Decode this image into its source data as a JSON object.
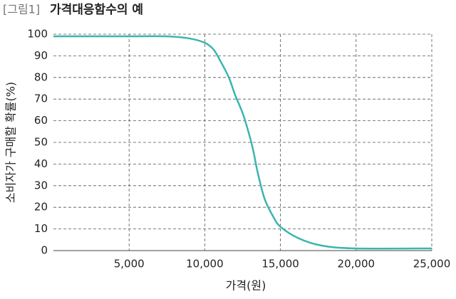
{
  "chart_data": {
    "type": "line",
    "figure_label": "[그림1]",
    "title": "가격대응함수의 예",
    "xlabel": "가격(원)",
    "ylabel": "소비자가 구매할 확률(%)",
    "x": [
      0,
      5000,
      7500,
      9000,
      10000,
      10570,
      11000,
      11590,
      12000,
      12530,
      13000,
      13240,
      13500,
      13950,
      14500,
      15000,
      16230,
      17740,
      20000,
      25000
    ],
    "series": [
      {
        "color": "#3bb5ae",
        "values": [
          99,
          99,
          99,
          98,
          96,
          93,
          88,
          80,
          72,
          63,
          52,
          45,
          36,
          24,
          16,
          11,
          5.6,
          2.3,
          1,
          1
        ]
      }
    ],
    "xlim": [
      0,
      25000
    ],
    "xticks": [
      {
        "value": 5000,
        "label": "5,000"
      },
      {
        "value": 10000,
        "label": "10,000"
      },
      {
        "value": 15000,
        "label": "15,000"
      },
      {
        "value": 20000,
        "label": "20,000"
      },
      {
        "value": 25000,
        "label": "25,000"
      }
    ],
    "ylim": [
      0,
      100
    ],
    "yticks": [
      0,
      10,
      20,
      30,
      40,
      50,
      60,
      70,
      80,
      90,
      100
    ],
    "grid": true
  }
}
